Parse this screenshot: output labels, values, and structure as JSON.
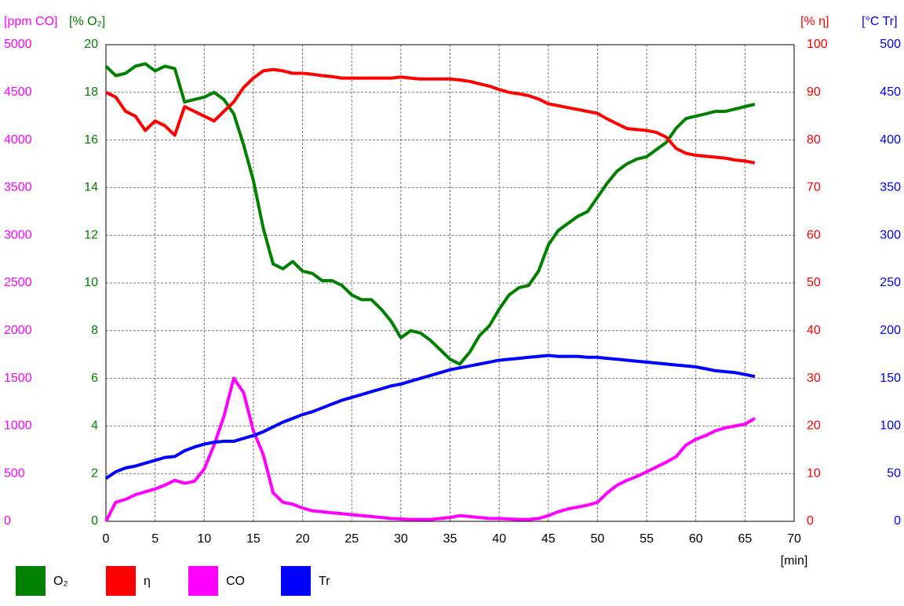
{
  "chart_data": {
    "type": "line",
    "x_label": "[min]",
    "x": [
      0,
      1,
      2,
      3,
      4,
      5,
      6,
      7,
      8,
      9,
      10,
      11,
      12,
      13,
      14,
      15,
      16,
      17,
      18,
      19,
      20,
      21,
      22,
      23,
      24,
      25,
      26,
      27,
      28,
      29,
      30,
      31,
      32,
      33,
      34,
      35,
      36,
      37,
      38,
      39,
      40,
      41,
      42,
      43,
      44,
      45,
      46,
      47,
      48,
      49,
      50,
      51,
      52,
      53,
      54,
      55,
      56,
      57,
      58,
      59,
      60,
      61,
      62,
      63,
      64,
      65,
      66
    ],
    "xlim": [
      0,
      70
    ],
    "xticks": [
      0,
      5,
      10,
      15,
      20,
      25,
      30,
      35,
      40,
      45,
      50,
      55,
      60,
      65,
      70
    ],
    "grid": true,
    "y_axes": [
      {
        "label": "[ppm CO]",
        "color": "#ff00ff",
        "side": "left",
        "lim": [
          0,
          5000
        ],
        "ticks": [
          0,
          500,
          1000,
          1500,
          2000,
          2500,
          3000,
          3500,
          4000,
          4500,
          5000
        ]
      },
      {
        "label": "[% O₂]",
        "color": "#008000",
        "side": "left",
        "lim": [
          0,
          20
        ],
        "ticks": [
          0,
          2,
          4,
          6,
          8,
          10,
          12,
          14,
          16,
          18,
          20
        ]
      },
      {
        "label": "[% η]",
        "color": "#ff0000",
        "side": "right",
        "lim": [
          0,
          100
        ],
        "ticks": [
          0,
          10,
          20,
          30,
          40,
          50,
          60,
          70,
          80,
          90,
          100
        ]
      },
      {
        "label": "[°C Tr]",
        "color": "#0000ff",
        "side": "right",
        "lim": [
          0,
          500
        ],
        "ticks": [
          0,
          50,
          100,
          150,
          200,
          250,
          300,
          350,
          400,
          450,
          500
        ]
      }
    ],
    "series": [
      {
        "name": "O₂",
        "color": "#008000",
        "axis": 1,
        "values": [
          19.1,
          18.7,
          18.8,
          19.1,
          19.2,
          18.9,
          19.1,
          19.0,
          17.6,
          17.7,
          17.8,
          18.0,
          17.7,
          17.1,
          15.8,
          14.3,
          12.3,
          10.8,
          10.6,
          10.9,
          10.5,
          10.4,
          10.1,
          10.1,
          9.9,
          9.5,
          9.3,
          9.3,
          8.9,
          8.4,
          7.7,
          8.0,
          7.9,
          7.6,
          7.2,
          6.8,
          6.6,
          7.1,
          7.8,
          8.2,
          8.9,
          9.5,
          9.8,
          9.9,
          10.5,
          11.6,
          12.2,
          12.5,
          12.8,
          13.0,
          13.6,
          14.2,
          14.7,
          15.0,
          15.2,
          15.3,
          15.6,
          15.9,
          16.5,
          16.9,
          17.0,
          17.1,
          17.2,
          17.2,
          17.3,
          17.4,
          17.5
        ]
      },
      {
        "name": "η",
        "color": "#ff0000",
        "axis": 2,
        "values": [
          90,
          89,
          86,
          85,
          82,
          84,
          83,
          81,
          87,
          86,
          85,
          84,
          86,
          88,
          91,
          93,
          94.5,
          94.8,
          94.5,
          94,
          94,
          93.8,
          93.5,
          93.3,
          93,
          93,
          93,
          93,
          93,
          93,
          93.2,
          93,
          92.8,
          92.8,
          92.8,
          92.8,
          92.6,
          92.3,
          91.8,
          91.3,
          90.6,
          90,
          89.7,
          89.3,
          88.6,
          87.6,
          87.2,
          86.8,
          86.4,
          86,
          85.6,
          84.4,
          83.4,
          82.4,
          82.2,
          82,
          81.6,
          80.6,
          78.2,
          77.2,
          76.8,
          76.6,
          76.4,
          76.2,
          75.8,
          75.6,
          75.2
        ]
      },
      {
        "name": "CO",
        "color": "#ff00ff",
        "axis": 0,
        "values": [
          0,
          200,
          230,
          280,
          310,
          340,
          380,
          430,
          400,
          420,
          550,
          800,
          1100,
          1500,
          1350,
          950,
          700,
          300,
          200,
          180,
          140,
          110,
          100,
          90,
          80,
          70,
          60,
          50,
          40,
          30,
          25,
          20,
          20,
          20,
          30,
          40,
          60,
          50,
          40,
          30,
          30,
          25,
          20,
          20,
          30,
          60,
          100,
          130,
          150,
          170,
          200,
          300,
          380,
          430,
          470,
          520,
          570,
          620,
          680,
          800,
          860,
          900,
          950,
          980,
          1000,
          1020,
          1080
        ]
      },
      {
        "name": "Tr",
        "color": "#0000ff",
        "axis": 3,
        "values": [
          45,
          52,
          56,
          58,
          61,
          64,
          67,
          68,
          74,
          78,
          81,
          83,
          84,
          84,
          87,
          90,
          94,
          99,
          104,
          108,
          112,
          115,
          119,
          123,
          127,
          130,
          133,
          136,
          139,
          142,
          144,
          147,
          150,
          153,
          156,
          159,
          161,
          163,
          165,
          167,
          169,
          170,
          171,
          172,
          173,
          174,
          173,
          173,
          173,
          172,
          172,
          171,
          170,
          169,
          168,
          167,
          166,
          165,
          164,
          163,
          162,
          160,
          158,
          157,
          156,
          154,
          152
        ]
      }
    ]
  }
}
